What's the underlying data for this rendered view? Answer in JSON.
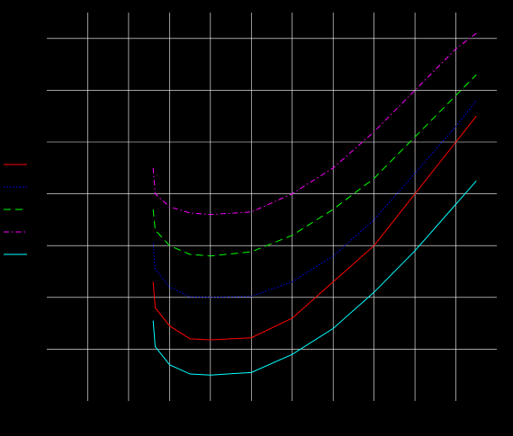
{
  "chart_data": {
    "type": "line",
    "title": "",
    "xlabel": "",
    "ylabel": "",
    "xlim": [
      0,
      11
    ],
    "ylim": [
      -7,
      0.5
    ],
    "grid": true,
    "legend_placement": "left",
    "background": "#000000",
    "grid_color": "#ffffff",
    "series": [
      {
        "color": "#ff0000",
        "dash": "solid",
        "x": [
          2.6,
          2.65,
          3.0,
          3.5,
          4.0,
          5.0,
          6.0,
          7.0,
          8.0,
          9.0,
          10.0,
          10.5
        ],
        "y": [
          -4.7,
          -5.2,
          -5.55,
          -5.8,
          -5.82,
          -5.78,
          -5.4,
          -4.7,
          -4.0,
          -3.0,
          -2.0,
          -1.5
        ]
      },
      {
        "color": "#0000ff",
        "dash": "dotted",
        "x": [
          2.6,
          2.65,
          3.0,
          3.5,
          4.0,
          5.0,
          6.0,
          7.0,
          8.0,
          9.0,
          10.0,
          10.5
        ],
        "y": [
          -3.95,
          -4.45,
          -4.8,
          -4.99,
          -5.0,
          -4.98,
          -4.7,
          -4.2,
          -3.5,
          -2.6,
          -1.7,
          -1.2
        ]
      },
      {
        "color": "#00ff00",
        "dash": "dashed",
        "x": [
          2.6,
          2.65,
          3.0,
          3.5,
          4.0,
          5.0,
          6.0,
          7.0,
          8.0,
          9.0,
          10.0,
          10.5
        ],
        "y": [
          -3.3,
          -3.7,
          -4.0,
          -4.17,
          -4.2,
          -4.12,
          -3.8,
          -3.3,
          -2.7,
          -1.9,
          -1.1,
          -0.7
        ]
      },
      {
        "color": "#ff00ff",
        "dash": "dash-dot",
        "x": [
          2.6,
          2.65,
          3.0,
          3.5,
          4.0,
          5.0,
          6.0,
          7.0,
          8.0,
          9.0,
          10.0,
          10.5
        ],
        "y": [
          -2.5,
          -3.0,
          -3.25,
          -3.37,
          -3.4,
          -3.35,
          -3.0,
          -2.5,
          -1.8,
          -1.0,
          -0.2,
          0.1
        ]
      },
      {
        "color": "#00ffff",
        "dash": "solid",
        "x": [
          2.6,
          2.65,
          3.0,
          3.5,
          4.0,
          5.0,
          6.0,
          7.0,
          8.0,
          9.0,
          10.0,
          10.5
        ],
        "y": [
          -5.45,
          -5.95,
          -6.3,
          -6.48,
          -6.5,
          -6.45,
          -6.1,
          -5.6,
          -4.9,
          -4.1,
          -3.2,
          -2.75
        ]
      }
    ]
  }
}
